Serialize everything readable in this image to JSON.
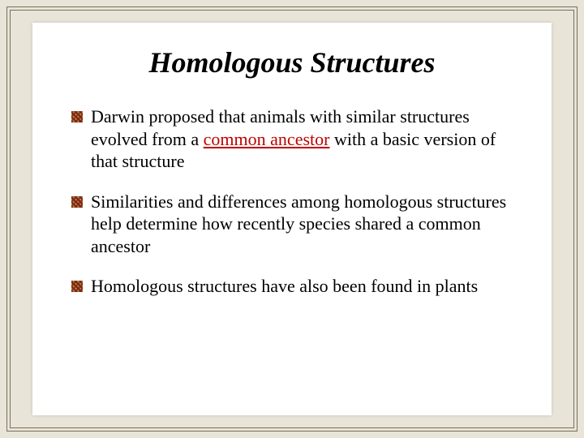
{
  "slide": {
    "title": "Homologous Structures",
    "background_color": "#e8e4d8",
    "paper_color": "#ffffff",
    "border_color": "#7a7058",
    "title_fontsize": 36,
    "body_fontsize": 22,
    "bullet_icon_colors": [
      "#7a2518",
      "#b8843a",
      "#8b3a1e"
    ],
    "bullets": [
      {
        "pre": "Darwin proposed that animals with similar structures evolved from a ",
        "em": "common ancestor",
        "em_color": "#c00000",
        "em_underline": true,
        "post": " with a basic version of that structure"
      },
      {
        "pre": "Similarities and differences among homologous structures help determine how recently species shared  a common ancestor",
        "em": "",
        "post": ""
      },
      {
        "pre": "Homologous structures have also been found in plants",
        "em": "",
        "post": ""
      }
    ]
  }
}
